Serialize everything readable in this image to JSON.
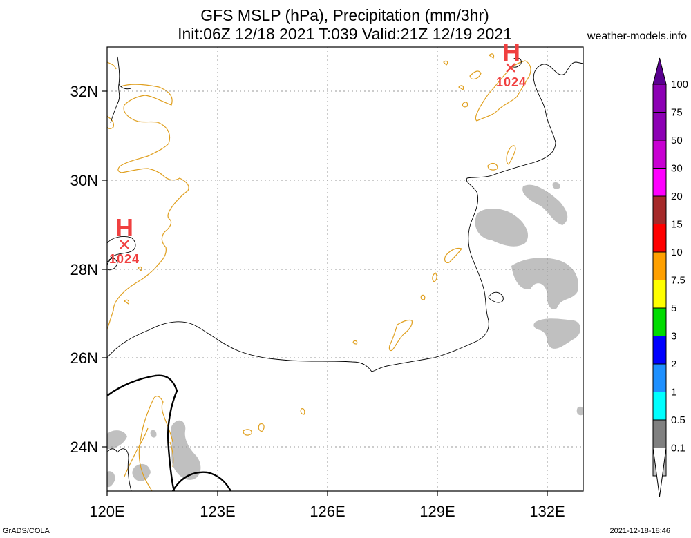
{
  "header": {
    "title_line1": "GFS MSLP (hPa), Precipitation (mm/3hr)",
    "title_line2": "Init:06Z 12/18 2021 T:039 Valid:21Z 12/19 2021",
    "site": "weather-models.info"
  },
  "footer": {
    "left": "GrADS/COLA",
    "right": "2021-12-18-18:46"
  },
  "map": {
    "lon_labels": [
      "120E",
      "123E",
      "126E",
      "129E",
      "132E"
    ],
    "lat_labels": [
      "32N",
      "30N",
      "28N",
      "26N",
      "24N"
    ],
    "coast_color": "#e0a020",
    "isobar_color": "#000000",
    "precip_color": "#c0c0c0",
    "pressure_centers": [
      {
        "type": "H",
        "value": "1024",
        "location": "northeast"
      },
      {
        "type": "H",
        "value": "1024",
        "location": "west"
      }
    ]
  },
  "colorbar": {
    "levels": [
      {
        "label": "100",
        "color": "#5a0090"
      },
      {
        "label": "75",
        "color": "#8c00b4"
      },
      {
        "label": "50",
        "color": "#c800d2"
      },
      {
        "label": "30",
        "color": "#ff00ff"
      },
      {
        "label": "20",
        "color": "#a52a2a"
      },
      {
        "label": "15",
        "color": "#ff0000"
      },
      {
        "label": "10",
        "color": "#ffa000"
      },
      {
        "label": "7.5",
        "color": "#ffff00"
      },
      {
        "label": "5",
        "color": "#00dc00"
      },
      {
        "label": "3",
        "color": "#0000ff"
      },
      {
        "label": "2",
        "color": "#1e90ff"
      },
      {
        "label": "1",
        "color": "#00ffff"
      },
      {
        "label": "0.5",
        "color": "#808080"
      },
      {
        "label": "0.1",
        "color": "#c0c0c0"
      }
    ]
  }
}
